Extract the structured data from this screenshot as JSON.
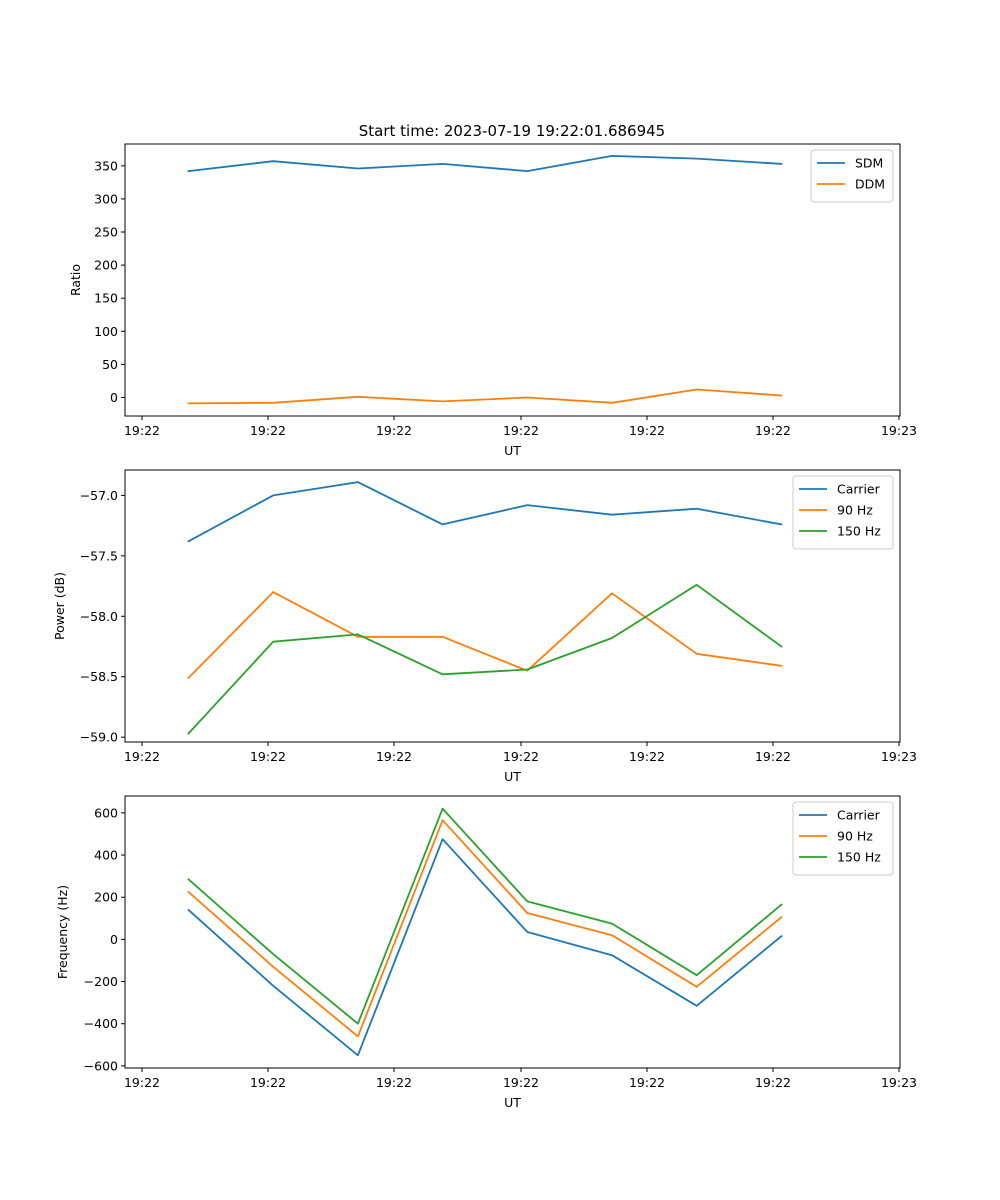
{
  "figure": {
    "title": "Start time: 2023-07-19 19:22:01.686945"
  },
  "chart_data": [
    {
      "type": "line",
      "title": "Start time: 2023-07-19 19:22:01.686945",
      "xlabel": "UT",
      "ylabel": "Ratio",
      "x_tick_labels": [
        "19:22",
        "19:22",
        "19:22",
        "19:22",
        "19:22",
        "19:22",
        "19:23"
      ],
      "xlim": [
        -0.75,
        8.4
      ],
      "ylim": [
        -28,
        383
      ],
      "y_ticks": [
        0,
        50,
        100,
        150,
        200,
        250,
        300,
        350
      ],
      "legend_position": "top-right",
      "x": [
        0,
        1,
        2,
        3,
        4,
        5,
        6,
        7
      ],
      "series": [
        {
          "name": "SDM",
          "color": "#1f77b4",
          "values": [
            342,
            357,
            346,
            353,
            342,
            365,
            361,
            353
          ]
        },
        {
          "name": "DDM",
          "color": "#ff7f0e",
          "values": [
            -9,
            -8,
            1,
            -6,
            0,
            -8,
            12,
            3
          ]
        }
      ]
    },
    {
      "type": "line",
      "title": "",
      "xlabel": "UT",
      "ylabel": "Power (dB)",
      "x_tick_labels": [
        "19:22",
        "19:22",
        "19:22",
        "19:22",
        "19:22",
        "19:22",
        "19:23"
      ],
      "xlim": [
        -0.75,
        8.4
      ],
      "ylim": [
        -59.04,
        -56.79
      ],
      "y_ticks": [
        -59.0,
        -58.5,
        -58.0,
        -57.5,
        -57.0
      ],
      "legend_position": "top-right",
      "x": [
        0,
        1,
        2,
        3,
        4,
        5,
        6,
        7
      ],
      "series": [
        {
          "name": "Carrier",
          "color": "#1f77b4",
          "values": [
            -57.38,
            -57.0,
            -56.89,
            -57.24,
            -57.08,
            -57.16,
            -57.11,
            -57.24
          ]
        },
        {
          "name": "90 Hz",
          "color": "#ff7f0e",
          "values": [
            -58.51,
            -57.8,
            -58.17,
            -58.17,
            -58.45,
            -57.81,
            -58.31,
            -58.41
          ]
        },
        {
          "name": "150 Hz",
          "color": "#2ca02c",
          "values": [
            -58.97,
            -58.21,
            -58.15,
            -58.48,
            -58.44,
            -58.18,
            -57.74,
            -58.25
          ]
        }
      ]
    },
    {
      "type": "line",
      "title": "",
      "xlabel": "UT",
      "ylabel": "Frequency (Hz)",
      "x_tick_labels": [
        "19:22",
        "19:22",
        "19:22",
        "19:22",
        "19:22",
        "19:22",
        "19:23"
      ],
      "xlim": [
        -0.75,
        8.4
      ],
      "ylim": [
        -610,
        680
      ],
      "y_ticks": [
        -600,
        -400,
        -200,
        0,
        200,
        400,
        600
      ],
      "legend_position": "top-right",
      "x": [
        0,
        1,
        2,
        3,
        4,
        5,
        6,
        7
      ],
      "series": [
        {
          "name": "Carrier",
          "color": "#1f77b4",
          "values": [
            140,
            -220,
            -550,
            475,
            35,
            -75,
            -315,
            15
          ]
        },
        {
          "name": "90 Hz",
          "color": "#ff7f0e",
          "values": [
            225,
            -130,
            -460,
            565,
            125,
            20,
            -225,
            105
          ]
        },
        {
          "name": "150 Hz",
          "color": "#2ca02c",
          "values": [
            285,
            -70,
            -400,
            620,
            180,
            75,
            -170,
            165
          ]
        }
      ]
    }
  ]
}
